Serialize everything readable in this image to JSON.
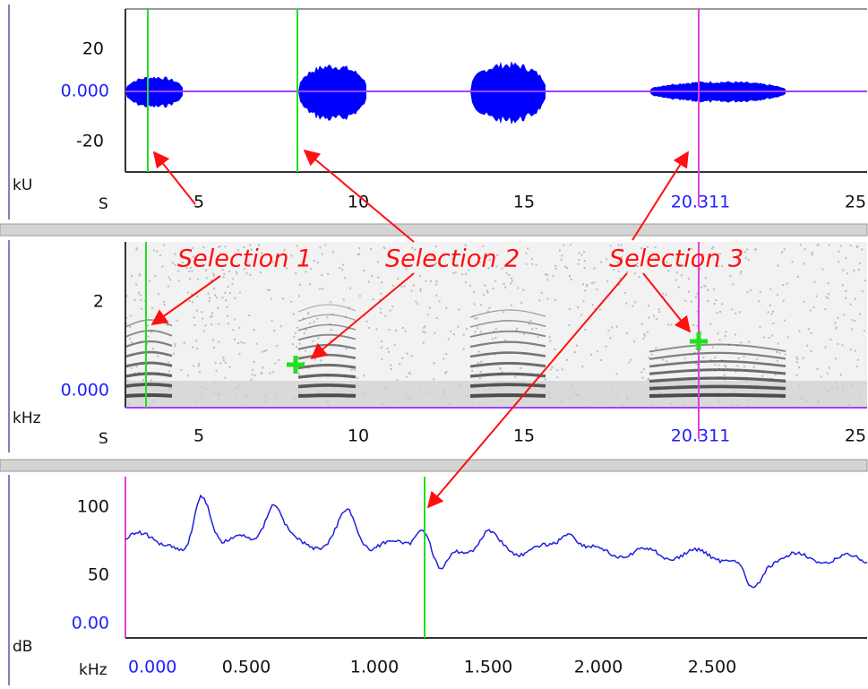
{
  "waveform": {
    "y_unit": "kU",
    "x_unit": "S",
    "y_ticks": [
      "20",
      "0.000",
      "-20"
    ],
    "x_ticks": [
      "5",
      "10",
      "15",
      "25"
    ],
    "cursor_time": "20.311"
  },
  "spectrogram": {
    "y_unit": "kHz",
    "x_unit": "S",
    "y_ticks": [
      "2",
      "0.000"
    ],
    "x_ticks": [
      "5",
      "10",
      "15",
      "25"
    ],
    "cursor_time": "20.311"
  },
  "spectrum": {
    "y_unit": "dB",
    "x_unit": "kHz",
    "y_ticks": [
      "100",
      "50",
      "0.00"
    ],
    "x_ticks": [
      "0.000",
      "0.500",
      "1.000",
      "1.500",
      "2.000",
      "2.500"
    ]
  },
  "annotations": [
    "Selection 1",
    "Selection 2",
    "Selection 3"
  ]
}
